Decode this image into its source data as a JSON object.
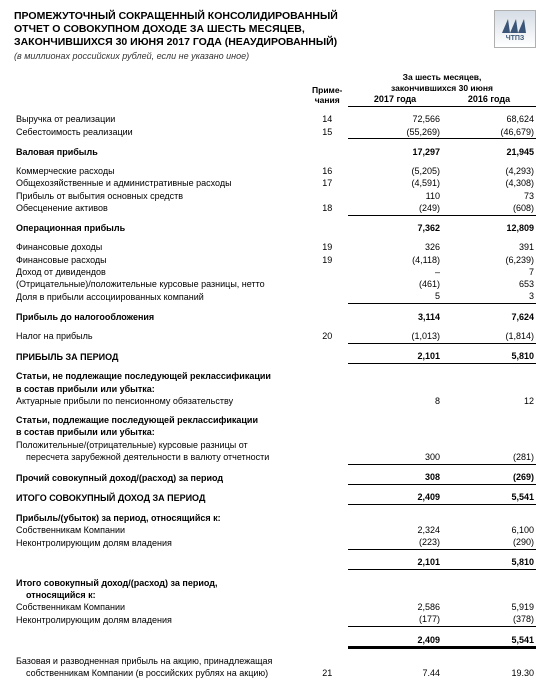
{
  "header": {
    "title_line1": "ПРОМЕЖУТОЧНЫЙ СОКРАЩЕННЫЙ КОНСОЛИДИРОВАННЫЙ",
    "title_line2": "ОТЧЕТ О СОВОКУПНОМ ДОХОДЕ ЗА ШЕСТЬ МЕСЯЦЕВ,",
    "title_line3": "ЗАКОНЧИВШИХСЯ 30 ИЮНЯ 2017 ГОДА (НЕАУДИРОВАННЫЙ)",
    "subtitle": "(в миллионах российских рублей, если не указано иное)",
    "logo_text": "ЧТПЗ"
  },
  "cols": {
    "notes": "Приме-\nчания",
    "period": "За шесть месяцев,",
    "period2": "закончившихся 30 июня",
    "y2017": "2017 года",
    "y2016": "2016 года"
  },
  "rows": [
    {
      "d": "Выручка от реализации",
      "n": "14",
      "a": "72,566",
      "b": "68,624"
    },
    {
      "d": "Себестоимость реализации",
      "n": "15",
      "a": "(55,269)",
      "b": "(46,679)",
      "ul": true
    },
    {
      "spacer": true
    },
    {
      "d": "Валовая прибыль",
      "bold": true,
      "a": "17,297",
      "b": "21,945"
    },
    {
      "spacer": true
    },
    {
      "d": "Коммерческие расходы",
      "n": "16",
      "a": "(5,205)",
      "b": "(4,293)"
    },
    {
      "d": "Общехозяйственные и административные расходы",
      "n": "17",
      "a": "(4,591)",
      "b": "(4,308)"
    },
    {
      "d": "Прибыль от выбытия основных средств",
      "a": "110",
      "b": "73"
    },
    {
      "d": "Обесценение активов",
      "n": "18",
      "a": "(249)",
      "b": "(608)",
      "ul": true
    },
    {
      "spacer": true
    },
    {
      "d": "Операционная прибыль",
      "bold": true,
      "a": "7,362",
      "b": "12,809"
    },
    {
      "spacer": true
    },
    {
      "d": "Финансовые доходы",
      "n": "19",
      "a": "326",
      "b": "391"
    },
    {
      "d": "Финансовые расходы",
      "n": "19",
      "a": "(4,118)",
      "b": "(6,239)"
    },
    {
      "d": "Доход от дивидендов",
      "a": "–",
      "b": "7"
    },
    {
      "d": "(Отрицательные)/положительные курсовые разницы, нетто",
      "a": "(461)",
      "b": "653"
    },
    {
      "d": "Доля в прибыли ассоциированных компаний",
      "a": "5",
      "b": "3",
      "ul": true
    },
    {
      "spacer": true
    },
    {
      "d": "Прибыль до налогообложения",
      "bold": true,
      "a": "3,114",
      "b": "7,624"
    },
    {
      "spacer": true
    },
    {
      "d": "Налог на прибыль",
      "n": "20",
      "a": "(1,013)",
      "b": "(1,814)",
      "ul": true
    },
    {
      "spacer": true
    },
    {
      "d": "ПРИБЫЛЬ ЗА ПЕРИОД",
      "bold": true,
      "a": "2,101",
      "b": "5,810",
      "ul": true
    },
    {
      "spacer": true
    },
    {
      "d": "Статьи, не подлежащие последующей реклассификации",
      "bold": true
    },
    {
      "d": "в состав прибыли или убытка:",
      "bold": true
    },
    {
      "d": "Актуарные прибыли по пенсионному обязательству",
      "a": "8",
      "b": "12"
    },
    {
      "spacer": true
    },
    {
      "d": "Статьи, подлежащие последующей реклассификации",
      "bold": true
    },
    {
      "d": "в состав прибыли или убытка:",
      "bold": true
    },
    {
      "d": "Положительные/(отрицательные) курсовые разницы от"
    },
    {
      "d": "пересчета зарубежной деятельности в валюту отчетности",
      "a": "300",
      "b": "(281)",
      "ul": true,
      "indent": true
    },
    {
      "spacer": true
    },
    {
      "d": "Прочий совокупный доход/(расход) за период",
      "bold": true,
      "a": "308",
      "b": "(269)",
      "ul": true
    },
    {
      "spacer": true
    },
    {
      "d": "ИТОГО СОВОКУПНЫЙ ДОХОД ЗА ПЕРИОД",
      "bold": true,
      "a": "2,409",
      "b": "5,541",
      "ul": true
    },
    {
      "spacer": true
    },
    {
      "d": "Прибыль/(убыток) за период, относящийся к:",
      "bold": true
    },
    {
      "d": "Собственникам Компании",
      "a": "2,324",
      "b": "6,100"
    },
    {
      "d": "Неконтролирующим долям владения",
      "a": "(223)",
      "b": "(290)",
      "ul": true
    },
    {
      "spacer": true
    },
    {
      "d": "",
      "bold": true,
      "a": "2,101",
      "b": "5,810",
      "ul": true
    },
    {
      "spacer": true
    },
    {
      "d": "Итого совокупный доход/(расход) за период,",
      "bold": true
    },
    {
      "d": "относящийся к:",
      "bold": true,
      "indent": true
    },
    {
      "d": "Собственникам Компании",
      "a": "2,586",
      "b": "5,919"
    },
    {
      "d": "Неконтролирующим долям владения",
      "a": "(177)",
      "b": "(378)",
      "ul": true
    },
    {
      "spacer": true
    },
    {
      "d": "",
      "bold": true,
      "a": "2,409",
      "b": "5,541",
      "dul": true
    },
    {
      "spacer": true
    },
    {
      "d": "Базовая и разводненная прибыль на акцию, принадлежащая"
    },
    {
      "d": "собственникам Компании (в российских рублях на акцию)",
      "n": "21",
      "a": "7.44",
      "b": "19.30",
      "indent": true
    }
  ]
}
